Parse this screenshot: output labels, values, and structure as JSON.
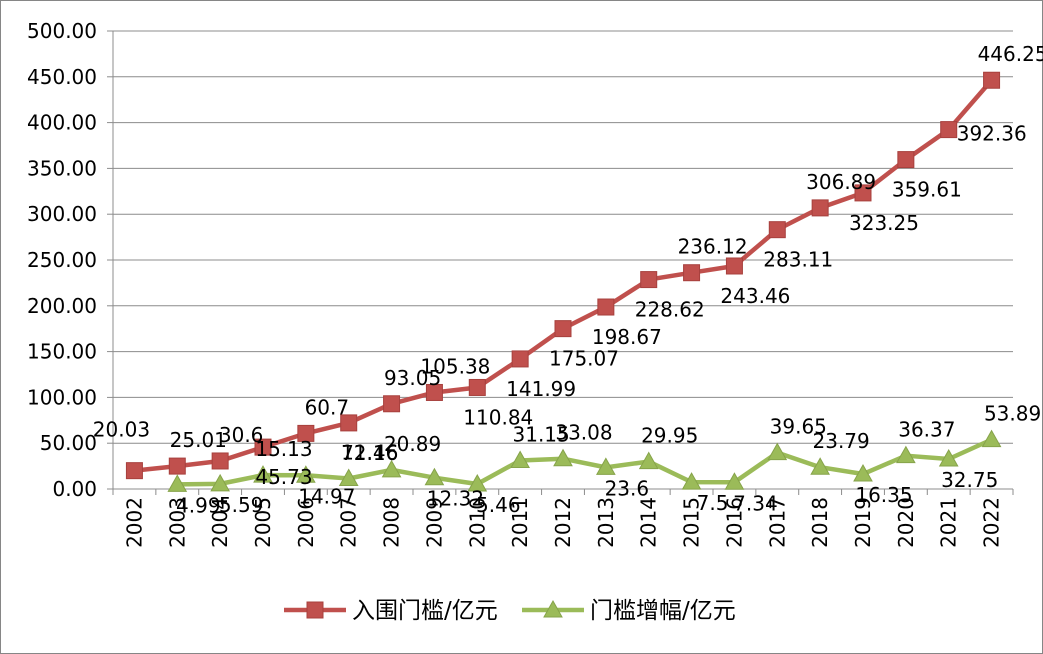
{
  "chart_data": {
    "type": "line",
    "categories": [
      "2002",
      "2003",
      "2004",
      "2005",
      "2006",
      "2007",
      "2008",
      "2009",
      "2010",
      "2011",
      "2012",
      "2013",
      "2014",
      "2015",
      "2016",
      "2017",
      "2018",
      "2019",
      "2020",
      "2021",
      "2022"
    ],
    "ylim": [
      0,
      500
    ],
    "yticks": [
      "0.00",
      "50.00",
      "100.00",
      "150.00",
      "200.00",
      "250.00",
      "300.00",
      "350.00",
      "400.00",
      "450.00",
      "500.00"
    ],
    "grid": true,
    "legend_position": "bottom",
    "series": [
      {
        "name": "入围门槛/亿元",
        "color": "#c0504d",
        "marker": "square",
        "values": [
          20.03,
          25.01,
          30.6,
          45.73,
          60.7,
          72.16,
          93.05,
          105.38,
          110.84,
          141.99,
          175.07,
          198.67,
          228.62,
          236.12,
          243.46,
          283.11,
          306.89,
          323.25,
          359.61,
          392.36,
          446.25
        ],
        "labels": [
          "20.03",
          "25.01",
          "30.6",
          "45.73",
          "60.7",
          "72.16",
          "93.05",
          "105.38",
          "110.84",
          "141.99",
          "175.07",
          "198.67",
          "228.62",
          "236.12",
          "243.46",
          "283.11",
          "306.89",
          "323.25",
          "359.61",
          "392.36",
          "446.25"
        ]
      },
      {
        "name": "门槛增幅/亿元",
        "color": "#9bbb59",
        "marker": "triangle",
        "values": [
          null,
          4.99,
          5.59,
          15.13,
          14.97,
          11.46,
          20.89,
          12.32,
          5.46,
          31.15,
          33.08,
          23.6,
          29.95,
          7.5,
          7.34,
          39.65,
          23.79,
          16.35,
          36.37,
          32.75,
          53.89
        ],
        "labels": [
          null,
          "4.99",
          "5.59",
          "15.13",
          "14.97",
          "11.46",
          "20.89",
          "12.32",
          "5.46",
          "31.15",
          "33.08",
          "23.6",
          "29.95",
          "7.5",
          "7.34",
          "39.65",
          "23.79",
          "16.35",
          "36.37",
          "32.75",
          "53.89"
        ]
      }
    ]
  }
}
